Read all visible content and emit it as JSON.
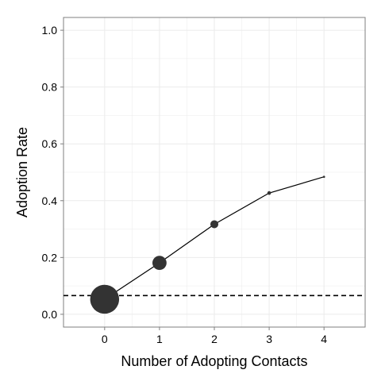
{
  "chart_data": {
    "type": "line",
    "title": "",
    "xlabel": "Number of Adopting Contacts",
    "ylabel": "Adoption Rate",
    "x_ticks": [
      "0",
      "1",
      "2",
      "3",
      "4"
    ],
    "y_ticks": [
      "0.0",
      "0.2",
      "0.4",
      "0.6",
      "0.8",
      "1.0"
    ],
    "xlim": [
      -0.75,
      4.75
    ],
    "ylim": [
      -0.045,
      1.045
    ],
    "grid": true,
    "legend": "none",
    "series": [
      {
        "points": [
          {
            "x": 0,
            "y": 0.053,
            "size": 0.92
          },
          {
            "x": 1,
            "y": 0.181,
            "size": 0.22
          },
          {
            "x": 2,
            "y": 0.317,
            "size": 0.07
          },
          {
            "x": 3,
            "y": 0.427,
            "size": 0.015
          },
          {
            "x": 4,
            "y": 0.484,
            "size": 0.005
          }
        ],
        "color": "#000000"
      }
    ],
    "reference_line": {
      "y": 0.066,
      "style": "dashed",
      "color": "#000000"
    },
    "marker_color": "#333333",
    "panel_border_color": "#7f7f7f",
    "grid_color": "#ebebeb"
  }
}
